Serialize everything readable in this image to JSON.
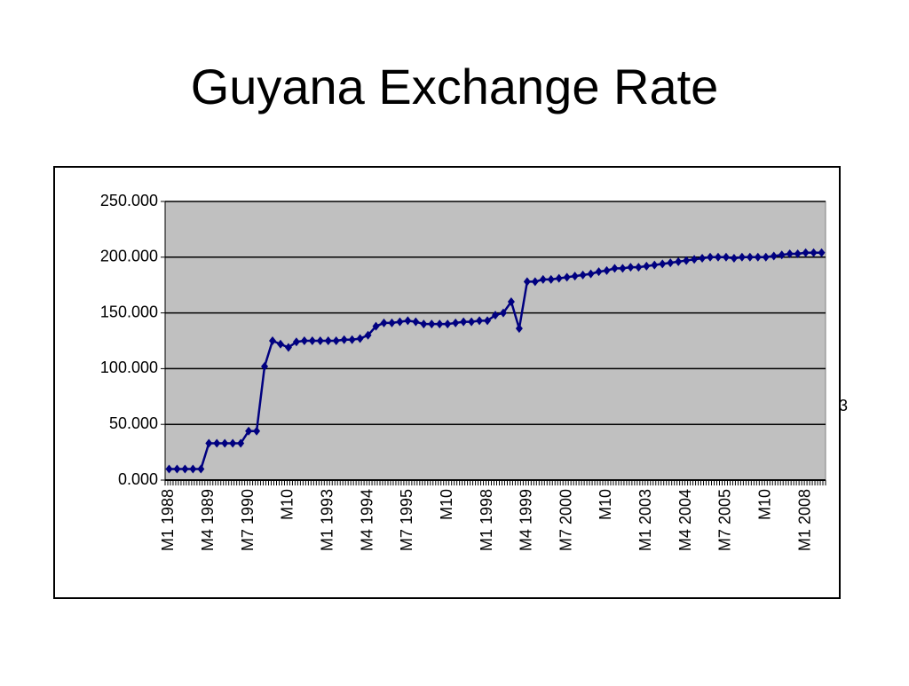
{
  "chart_data": {
    "type": "line",
    "title": "Guyana Exchange Rate",
    "categories": [
      "M1 1988",
      null,
      null,
      null,
      null,
      "M4 1989",
      null,
      null,
      null,
      null,
      "M7 1990",
      null,
      null,
      null,
      null,
      "M10",
      null,
      null,
      null,
      null,
      "M1 1993",
      null,
      null,
      null,
      null,
      "M4 1994",
      null,
      null,
      null,
      null,
      "M7 1995",
      null,
      null,
      null,
      null,
      "M10",
      null,
      null,
      null,
      null,
      "M1 1998",
      null,
      null,
      null,
      null,
      "M4 1999",
      null,
      null,
      null,
      null,
      "M7 2000",
      null,
      null,
      null,
      null,
      "M10",
      null,
      null,
      null,
      null,
      "M1 2003",
      null,
      null,
      null,
      null,
      "M4 2004",
      null,
      null,
      null,
      null,
      "M7 2005",
      null,
      null,
      null,
      null,
      "M10",
      null,
      null,
      null,
      null,
      "M1 2008",
      null,
      null
    ],
    "series": [
      {
        "color": "#000080",
        "values": [
          10,
          10,
          10,
          10,
          10,
          33,
          33,
          33,
          33,
          33,
          44,
          44,
          102,
          125,
          122,
          119,
          124,
          125,
          125,
          125,
          125,
          125,
          126,
          126,
          127,
          130,
          138,
          141,
          141,
          142,
          143,
          142,
          140,
          140,
          140,
          140,
          141,
          142,
          142,
          143,
          143,
          148,
          150,
          160,
          136,
          178,
          178,
          180,
          180,
          181,
          182,
          183,
          184,
          185,
          187,
          188,
          190,
          190,
          191,
          191,
          192,
          193,
          194,
          195,
          196,
          197,
          198,
          199,
          200,
          200,
          200,
          199,
          200,
          200,
          200,
          200,
          201,
          202,
          203,
          203,
          204,
          204,
          204
        ]
      }
    ],
    "ylim": [
      0,
      250
    ],
    "yticks": [
      {
        "value": 0,
        "label": "0.000"
      },
      {
        "value": 50,
        "label": "50.000"
      },
      {
        "value": 100,
        "label": "100.000"
      },
      {
        "value": 150,
        "label": "150.000"
      },
      {
        "value": 200,
        "label": "200.000"
      },
      {
        "value": 250,
        "label": "250.000"
      }
    ],
    "grid": true,
    "plot_background": "#c0c0c0",
    "side_note": "3"
  }
}
